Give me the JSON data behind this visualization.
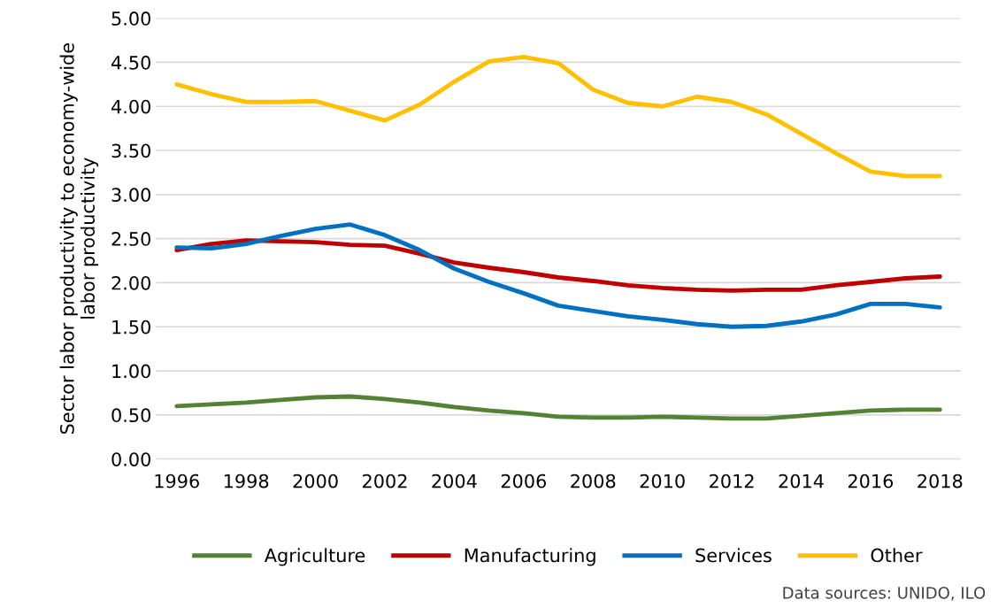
{
  "chart_data": {
    "type": "line",
    "ylabel": "Sector labor productivity to economy-wide\nlabor productivity",
    "categories": [
      "1996",
      null,
      "1998",
      null,
      "2000",
      null,
      "2002",
      null,
      "2004",
      null,
      "2006",
      null,
      "2008",
      null,
      "2010",
      null,
      "2012",
      null,
      "2014",
      null,
      "2016",
      null,
      "2018"
    ],
    "series": [
      {
        "name": "Agriculture",
        "color": "#548235",
        "values": [
          0.6,
          0.62,
          0.64,
          0.67,
          0.7,
          0.71,
          0.68,
          0.64,
          0.59,
          0.55,
          0.52,
          0.48,
          0.47,
          0.47,
          0.48,
          0.47,
          0.46,
          0.46,
          0.49,
          0.52,
          0.55,
          0.56,
          0.56
        ]
      },
      {
        "name": "Manufacturing",
        "color": "#c00000",
        "values": [
          2.37,
          2.44,
          2.48,
          2.47,
          2.46,
          2.43,
          2.42,
          2.33,
          2.23,
          2.17,
          2.12,
          2.06,
          2.02,
          1.97,
          1.94,
          1.92,
          1.91,
          1.92,
          1.92,
          1.97,
          2.01,
          2.05,
          2.07
        ]
      },
      {
        "name": "Services",
        "color": "#0070c0",
        "values": [
          2.4,
          2.39,
          2.44,
          2.53,
          2.61,
          2.66,
          2.54,
          2.37,
          2.16,
          2.01,
          1.88,
          1.74,
          1.68,
          1.62,
          1.58,
          1.53,
          1.5,
          1.51,
          1.56,
          1.64,
          1.76,
          1.76,
          1.72
        ]
      },
      {
        "name": "Other",
        "color": "#ffc000",
        "values": [
          4.25,
          4.14,
          4.05,
          4.05,
          4.06,
          3.95,
          3.84,
          4.02,
          4.28,
          4.51,
          4.56,
          4.49,
          4.19,
          4.04,
          4.0,
          4.11,
          4.05,
          3.91,
          3.69,
          3.47,
          3.26,
          3.21,
          3.21
        ]
      }
    ],
    "ylim": [
      0,
      5
    ],
    "yticks": [
      {
        "value": 0,
        "label": "0.00"
      },
      {
        "value": 0.5,
        "label": "0.50"
      },
      {
        "value": 1,
        "label": "1.00"
      },
      {
        "value": 1.5,
        "label": "1.50"
      },
      {
        "value": 2,
        "label": "2.00"
      },
      {
        "value": 2.5,
        "label": "2.50"
      },
      {
        "value": 3,
        "label": "3.00"
      },
      {
        "value": 3.5,
        "label": "3.50"
      },
      {
        "value": 4,
        "label": "4.00"
      },
      {
        "value": 4.5,
        "label": "4.50"
      },
      {
        "value": 5,
        "label": "5.00"
      }
    ],
    "grid": "y",
    "legend": "bottom",
    "marker": "none",
    "line_style": "solid",
    "annotations": [
      "Data sources: UNIDO, ILO"
    ]
  }
}
